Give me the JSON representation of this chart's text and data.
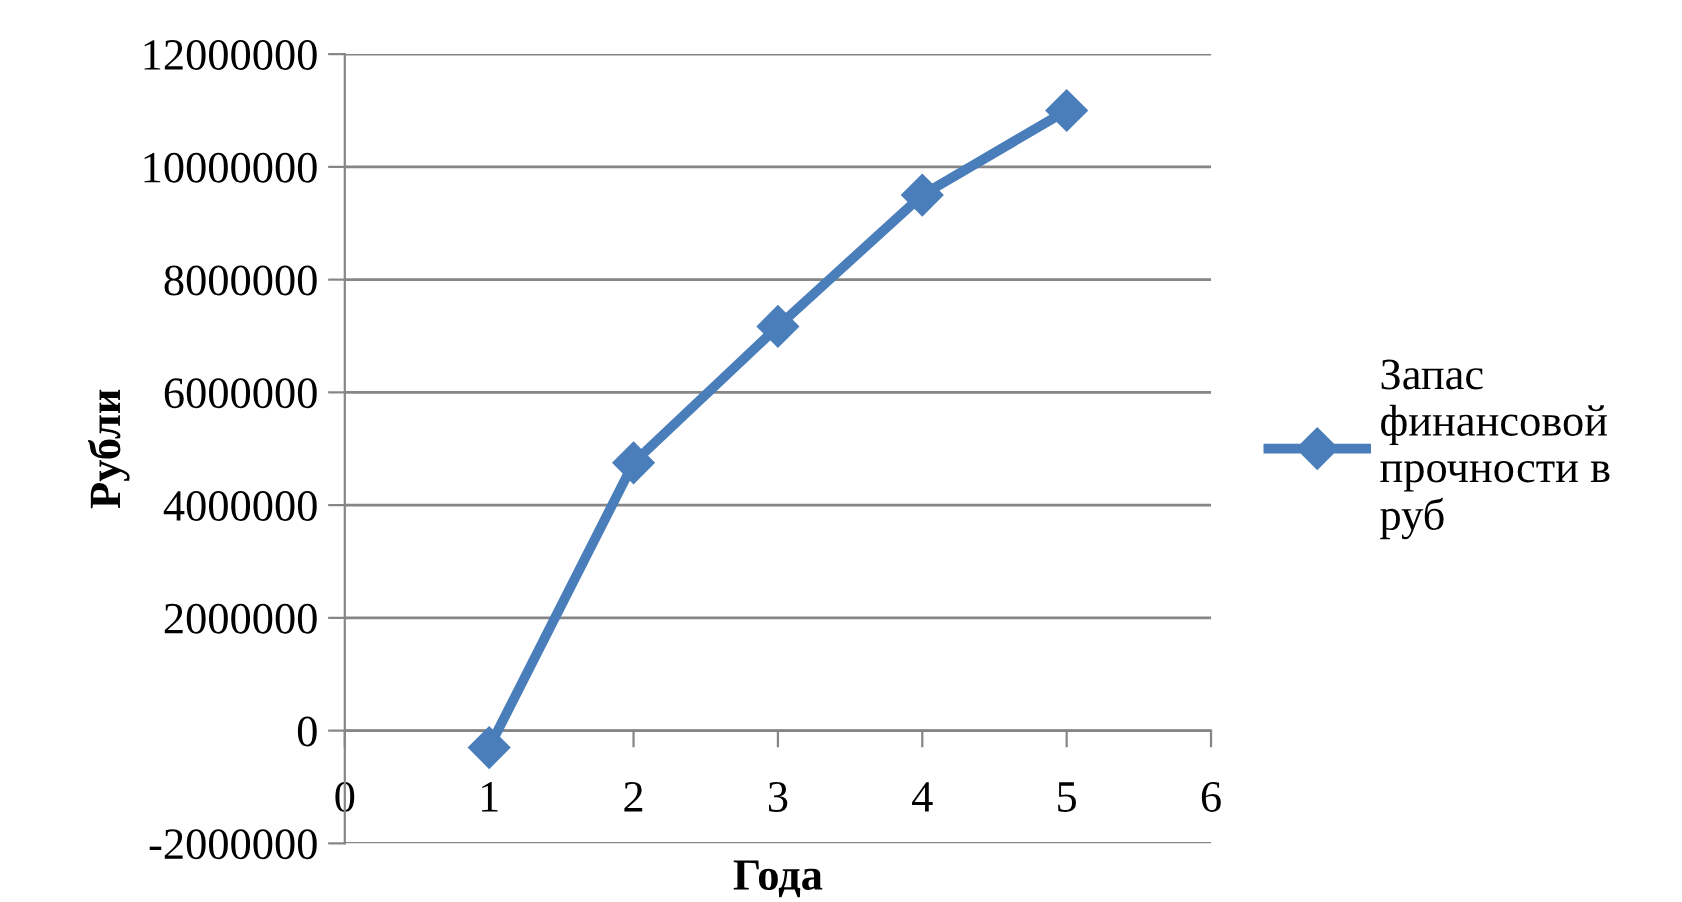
{
  "chart_data": {
    "type": "line",
    "xlabel": "Года",
    "ylabel": "Рубли",
    "x": [
      1,
      2,
      3,
      4,
      5
    ],
    "series": [
      {
        "name": "Запас\nфинансовой\nпрочности в\nруб",
        "color": "#4a7ebb",
        "values": [
          -300000,
          4750000,
          7170000,
          9500000,
          11000000
        ]
      }
    ],
    "xlim": [
      0,
      6
    ],
    "xticks": [
      0,
      1,
      2,
      3,
      4,
      5,
      6
    ],
    "ylim": [
      -2000000,
      12000000
    ],
    "yticks": [
      -2000000,
      0,
      2000000,
      4000000,
      6000000,
      8000000,
      10000000,
      12000000
    ],
    "grid": "y",
    "legend": "right",
    "marker": "diamond",
    "line_style": "solid"
  }
}
